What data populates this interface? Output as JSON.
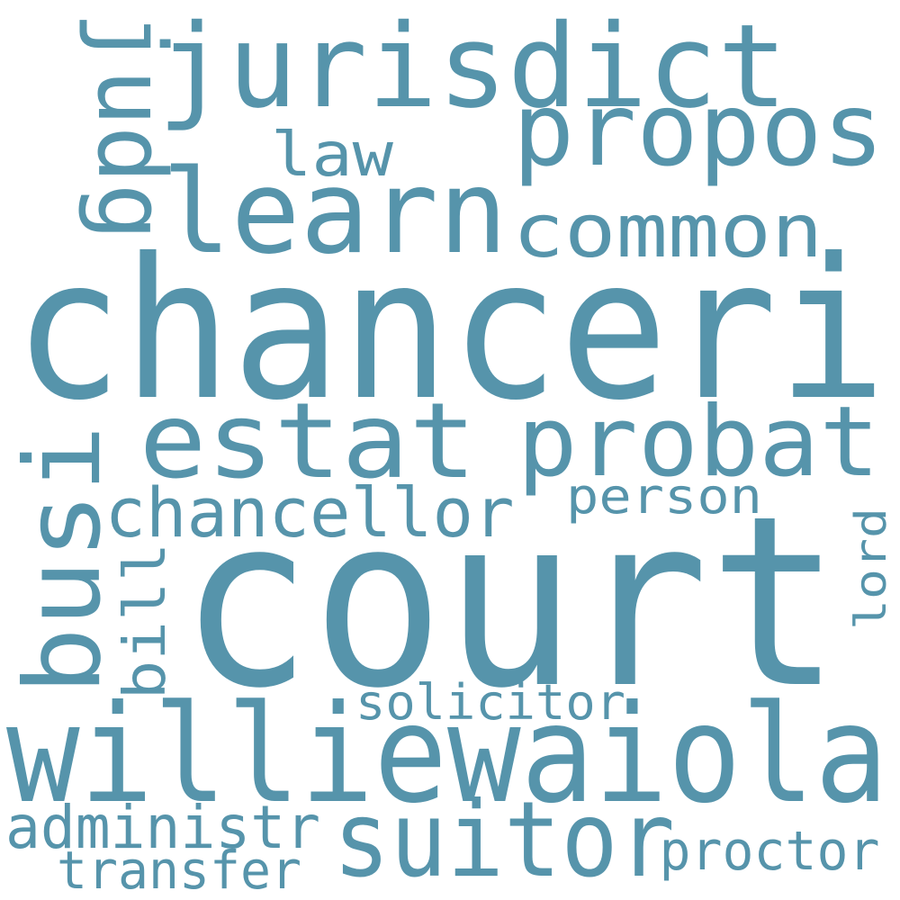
{
  "wordcloud": {
    "text_color": "#5694ab",
    "background": "#ffffff",
    "words": {
      "court": "court",
      "chanceri": "chanceri",
      "williewaiola": "williewaiola",
      "jurisdict": "jurisdict",
      "learn": "learn",
      "propos": "propos",
      "common": "common",
      "law": "law",
      "judg": "judg",
      "estat": "estat",
      "probat": "probat",
      "busi": "busi",
      "chancellor": "chancellor",
      "person": "person",
      "bill": "bill",
      "lord": "lord",
      "solicitor": "solicitor",
      "suitor": "suitor",
      "administr": "administr",
      "proctor": "proctor",
      "transfer": "transfer"
    }
  }
}
